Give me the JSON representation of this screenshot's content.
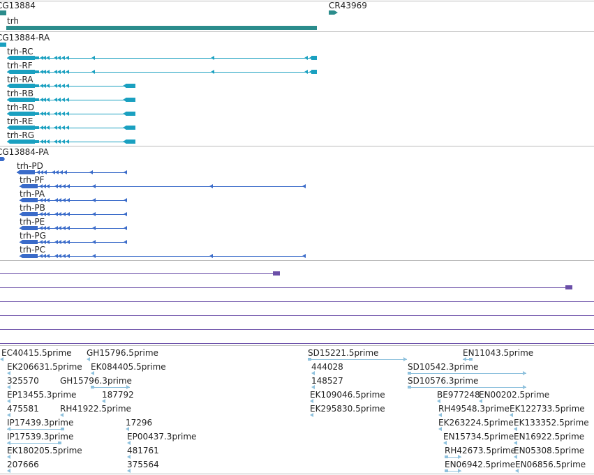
{
  "colors": {
    "gene": "#2b8c8c",
    "transcript": "#1aa0c0",
    "protein": "#3a6bc9",
    "purple": "#6b4fa8",
    "est": "#8ec1dd",
    "divider": "#bbbbbb",
    "text": "#222222"
  },
  "tracks": {
    "gene": {
      "items": [
        {
          "label": "CG13884"
        },
        {
          "label": "trh"
        },
        {
          "label": "CR43969"
        }
      ]
    },
    "transcripts": {
      "group_label": "CG13884-RA",
      "items": [
        {
          "label": "trh-RC"
        },
        {
          "label": "trh-RF"
        },
        {
          "label": "trh-RA"
        },
        {
          "label": "trh-RB"
        },
        {
          "label": "trh-RD"
        },
        {
          "label": "trh-RE"
        },
        {
          "label": "trh-RG"
        }
      ]
    },
    "proteins": {
      "group_label": "CG13884-PA",
      "items": [
        {
          "label": "trh-PD"
        },
        {
          "label": "trh-PF"
        },
        {
          "label": "trh-PA"
        },
        {
          "label": "trh-PB"
        },
        {
          "label": "trh-PE"
        },
        {
          "label": "trh-PG"
        },
        {
          "label": "trh-PC"
        }
      ]
    },
    "ests": {
      "items": [
        {
          "label": "EC40415.5prime"
        },
        {
          "label": "GH15796.5prime"
        },
        {
          "label": "SD15221.5prime"
        },
        {
          "label": "EN11043.5prime"
        },
        {
          "label": "EK206631.5prime"
        },
        {
          "label": "EK084405.5prime"
        },
        {
          "label": "444028"
        },
        {
          "label": "SD10542.3prime"
        },
        {
          "label": "325570"
        },
        {
          "label": "GH15796.3prime"
        },
        {
          "label": "148527"
        },
        {
          "label": "SD10576.3prime"
        },
        {
          "label": "EP13455.3prime"
        },
        {
          "label": "187792"
        },
        {
          "label": "EK109046.5prime"
        },
        {
          "label": "BE977248"
        },
        {
          "label": "EN00202.5prime"
        },
        {
          "label": "475581"
        },
        {
          "label": "RH41922.5prime"
        },
        {
          "label": "EK295830.5prime"
        },
        {
          "label": "RH49548.3prime"
        },
        {
          "label": "EK122733.5prime"
        },
        {
          "label": "IP17439.3prime"
        },
        {
          "label": "17296"
        },
        {
          "label": "EK263224.5prime"
        },
        {
          "label": "EK133352.5prime"
        },
        {
          "label": "IP17539.3prime"
        },
        {
          "label": "EP00437.3prime"
        },
        {
          "label": "EN15734.5prime"
        },
        {
          "label": "EN16922.5prime"
        },
        {
          "label": "EK180205.5prime"
        },
        {
          "label": "481761"
        },
        {
          "label": "RH42673.5prime"
        },
        {
          "label": "EN05308.5prime"
        },
        {
          "label": "207666"
        },
        {
          "label": "375564"
        },
        {
          "label": "EN06942.5prime"
        },
        {
          "label": "EN06856.5prime"
        }
      ]
    }
  }
}
